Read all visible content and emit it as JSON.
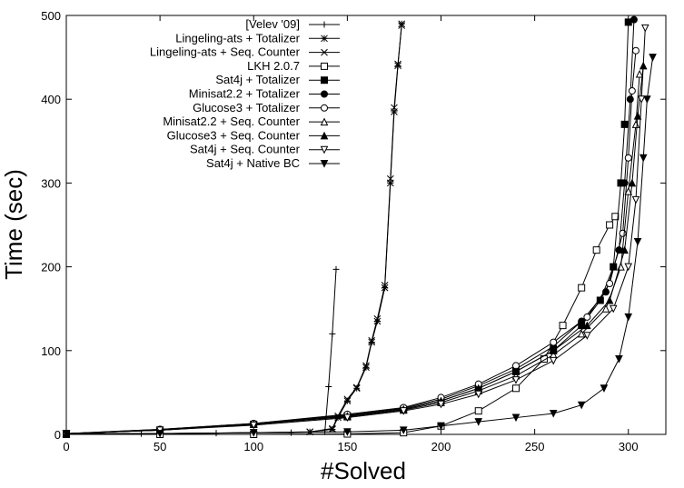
{
  "chart_data": {
    "type": "line",
    "title": "",
    "xlabel": "#Solved",
    "ylabel": "Time (sec)",
    "xlim": [
      0,
      320
    ],
    "ylim": [
      0,
      500
    ],
    "xticks": [
      0,
      50,
      100,
      150,
      200,
      250,
      300
    ],
    "yticks": [
      0,
      100,
      200,
      300,
      400,
      500
    ],
    "grid": false,
    "legend_position": "top-left",
    "series": [
      {
        "name": "[Velev '09]",
        "marker": "plus",
        "points": [
          [
            0,
            0.5
          ],
          [
            40,
            1
          ],
          [
            80,
            1.5
          ],
          [
            120,
            2
          ],
          [
            138,
            3
          ],
          [
            140,
            57
          ],
          [
            142,
            120
          ],
          [
            144,
            197
          ]
        ]
      },
      {
        "name": "Lingeling-ats + Totalizer",
        "marker": "star",
        "points": [
          [
            0,
            0.5
          ],
          [
            50,
            1
          ],
          [
            100,
            2
          ],
          [
            130,
            3
          ],
          [
            142,
            6
          ],
          [
            145,
            20
          ],
          [
            150,
            40
          ],
          [
            155,
            55
          ],
          [
            160,
            80
          ],
          [
            163,
            110
          ],
          [
            166,
            135
          ],
          [
            170,
            175
          ],
          [
            173,
            300
          ],
          [
            175,
            385
          ],
          [
            177,
            440
          ],
          [
            179,
            490
          ]
        ]
      },
      {
        "name": "Lingeling-ats + Seq. Counter",
        "marker": "x",
        "points": [
          [
            0,
            0.5
          ],
          [
            50,
            1
          ],
          [
            100,
            2
          ],
          [
            130,
            3
          ],
          [
            142,
            7
          ],
          [
            145,
            22
          ],
          [
            150,
            42
          ],
          [
            155,
            56
          ],
          [
            160,
            82
          ],
          [
            163,
            112
          ],
          [
            166,
            138
          ],
          [
            170,
            178
          ],
          [
            173,
            305
          ],
          [
            175,
            390
          ],
          [
            177,
            442
          ],
          [
            179,
            488
          ]
        ]
      },
      {
        "name": "LKH 2.0.7",
        "marker": "square-open",
        "points": [
          [
            0,
            0
          ],
          [
            50,
            0
          ],
          [
            100,
            0
          ],
          [
            150,
            0.5
          ],
          [
            180,
            2
          ],
          [
            200,
            10
          ],
          [
            220,
            28
          ],
          [
            240,
            55
          ],
          [
            255,
            90
          ],
          [
            265,
            130
          ],
          [
            275,
            175
          ],
          [
            283,
            220
          ],
          [
            290,
            250
          ],
          [
            293,
            260
          ]
        ]
      },
      {
        "name": "Sat4j + Totalizer",
        "marker": "square-filled",
        "points": [
          [
            0,
            1
          ],
          [
            50,
            5
          ],
          [
            100,
            12
          ],
          [
            150,
            22
          ],
          [
            180,
            30
          ],
          [
            200,
            40
          ],
          [
            220,
            55
          ],
          [
            240,
            75
          ],
          [
            260,
            100
          ],
          [
            275,
            130
          ],
          [
            285,
            160
          ],
          [
            292,
            200
          ],
          [
            296,
            300
          ],
          [
            298,
            370
          ],
          [
            300,
            492
          ]
        ]
      },
      {
        "name": "Minisat2.2 + Totalizer",
        "marker": "circle-filled",
        "points": [
          [
            0,
            1
          ],
          [
            50,
            6
          ],
          [
            100,
            13
          ],
          [
            150,
            23
          ],
          [
            180,
            31
          ],
          [
            200,
            42
          ],
          [
            220,
            58
          ],
          [
            240,
            78
          ],
          [
            260,
            105
          ],
          [
            275,
            135
          ],
          [
            288,
            170
          ],
          [
            295,
            220
          ],
          [
            298,
            300
          ],
          [
            301,
            400
          ],
          [
            303,
            495
          ]
        ]
      },
      {
        "name": "Glucose3 + Totalizer",
        "marker": "circle-open",
        "points": [
          [
            0,
            1
          ],
          [
            50,
            6
          ],
          [
            100,
            13
          ],
          [
            150,
            24
          ],
          [
            180,
            32
          ],
          [
            200,
            44
          ],
          [
            220,
            60
          ],
          [
            240,
            82
          ],
          [
            260,
            110
          ],
          [
            278,
            140
          ],
          [
            290,
            180
          ],
          [
            297,
            240
          ],
          [
            300,
            330
          ],
          [
            302,
            410
          ],
          [
            304,
            458
          ]
        ]
      },
      {
        "name": "Minisat2.2 + Seq. Counter",
        "marker": "triangle-up-open",
        "points": [
          [
            0,
            1
          ],
          [
            50,
            5
          ],
          [
            100,
            12
          ],
          [
            150,
            21
          ],
          [
            180,
            29
          ],
          [
            200,
            38
          ],
          [
            220,
            52
          ],
          [
            240,
            70
          ],
          [
            260,
            95
          ],
          [
            275,
            120
          ],
          [
            288,
            150
          ],
          [
            296,
            200
          ],
          [
            300,
            290
          ],
          [
            304,
            370
          ],
          [
            306,
            430
          ]
        ]
      },
      {
        "name": "Glucose3 + Seq. Counter",
        "marker": "triangle-up-filled",
        "points": [
          [
            0,
            1
          ],
          [
            50,
            5
          ],
          [
            100,
            12
          ],
          [
            150,
            22
          ],
          [
            180,
            30
          ],
          [
            200,
            40
          ],
          [
            220,
            55
          ],
          [
            240,
            75
          ],
          [
            260,
            100
          ],
          [
            278,
            130
          ],
          [
            290,
            160
          ],
          [
            298,
            220
          ],
          [
            302,
            300
          ],
          [
            305,
            380
          ],
          [
            308,
            440
          ]
        ]
      },
      {
        "name": "Sat4j + Seq. Counter",
        "marker": "triangle-down-open",
        "points": [
          [
            0,
            1
          ],
          [
            50,
            5
          ],
          [
            100,
            11
          ],
          [
            150,
            20
          ],
          [
            180,
            28
          ],
          [
            200,
            36
          ],
          [
            220,
            48
          ],
          [
            240,
            65
          ],
          [
            260,
            88
          ],
          [
            278,
            118
          ],
          [
            292,
            150
          ],
          [
            300,
            200
          ],
          [
            304,
            280
          ],
          [
            307,
            400
          ],
          [
            309,
            485
          ]
        ]
      },
      {
        "name": "Sat4j + Native BC",
        "marker": "triangle-down-filled",
        "points": [
          [
            0,
            0.5
          ],
          [
            50,
            1
          ],
          [
            100,
            2
          ],
          [
            150,
            3
          ],
          [
            180,
            5
          ],
          [
            200,
            10
          ],
          [
            220,
            15
          ],
          [
            240,
            20
          ],
          [
            260,
            25
          ],
          [
            275,
            35
          ],
          [
            287,
            55
          ],
          [
            295,
            90
          ],
          [
            300,
            140
          ],
          [
            305,
            230
          ],
          [
            308,
            330
          ],
          [
            310,
            400
          ],
          [
            313,
            450
          ]
        ]
      }
    ]
  }
}
